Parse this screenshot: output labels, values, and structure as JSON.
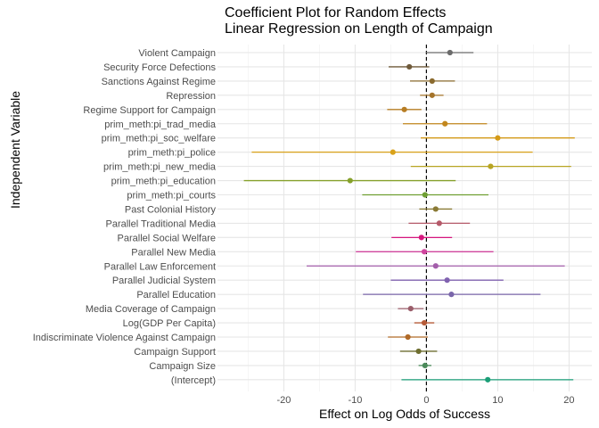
{
  "chart_data": {
    "type": "scatter",
    "title_line1": "Coefficient Plot for Random Effects",
    "title_line2": " Linear Regression on Length of Campaign",
    "xlabel": "Effect on Log Odds of Success",
    "ylabel": "Independent Variable",
    "xlim": [
      -29.3,
      23.2
    ],
    "x_ticks": [
      -20,
      -10,
      0,
      10,
      20
    ],
    "x_tick_labels": [
      "-20",
      "-10",
      "0",
      "10",
      "20"
    ],
    "reference_line": 0,
    "grid": true,
    "legend": "none",
    "variables": [
      {
        "label": "Violent Campaign",
        "estimate": 3.3,
        "low": -0.1,
        "high": 6.6,
        "color": "#6b6b6b"
      },
      {
        "label": "Security Force Defections",
        "estimate": -2.4,
        "low": -5.3,
        "high": 0.4,
        "color": "#6f5a3a"
      },
      {
        "label": "Sanctions Against Regime",
        "estimate": 0.8,
        "low": -2.3,
        "high": 4.0,
        "color": "#8a6a2e"
      },
      {
        "label": "Repression",
        "estimate": 0.8,
        "low": -0.9,
        "high": 2.4,
        "color": "#a5742a"
      },
      {
        "label": "Regime Support for Campaign",
        "estimate": -3.1,
        "low": -5.5,
        "high": -0.7,
        "color": "#b77d24"
      },
      {
        "label": "prim_meth:pi_trad_media",
        "estimate": 2.6,
        "low": -3.3,
        "high": 8.5,
        "color": "#c2871d"
      },
      {
        "label": "prim_meth:pi_soc_welfare",
        "estimate": 10.0,
        "low": -0.8,
        "high": 20.8,
        "color": "#d49a18"
      },
      {
        "label": "prim_meth:pi_police",
        "estimate": -4.7,
        "low": -24.5,
        "high": 14.9,
        "color": "#d9a21a"
      },
      {
        "label": "prim_meth:pi_new_media",
        "estimate": 9.0,
        "low": -2.2,
        "high": 20.3,
        "color": "#b8a524"
      },
      {
        "label": "prim_meth:pi_education",
        "estimate": -10.7,
        "low": -25.6,
        "high": 4.1,
        "color": "#86a12b"
      },
      {
        "label": "prim_meth:pi_courts",
        "estimate": -0.2,
        "low": -9.0,
        "high": 8.7,
        "color": "#6f9f33"
      },
      {
        "label": "Past Colonial History",
        "estimate": 1.3,
        "low": -1.0,
        "high": 3.6,
        "color": "#8a7a35"
      },
      {
        "label": "Parallel Traditional Media",
        "estimate": 1.8,
        "low": -2.5,
        "high": 6.1,
        "color": "#b55a6a"
      },
      {
        "label": "Parallel Social Welfare",
        "estimate": -0.7,
        "low": -4.9,
        "high": 3.6,
        "color": "#d6177e"
      },
      {
        "label": "Parallel New Media",
        "estimate": -0.3,
        "low": -9.9,
        "high": 9.4,
        "color": "#d0459e"
      },
      {
        "label": "Parallel Law Enforcement",
        "estimate": 1.3,
        "low": -16.8,
        "high": 19.4,
        "color": "#a35eaa"
      },
      {
        "label": "Parallel Judicial System",
        "estimate": 2.9,
        "low": -5.0,
        "high": 10.8,
        "color": "#8062b0"
      },
      {
        "label": "Parallel Education",
        "estimate": 3.5,
        "low": -8.9,
        "high": 16.0,
        "color": "#7a66aa"
      },
      {
        "label": "Media Coverage of Campaign",
        "estimate": -2.2,
        "low": -4.0,
        "high": -0.4,
        "color": "#9a5d6a"
      },
      {
        "label": "Log(GDP Per Capita)",
        "estimate": -0.3,
        "low": -1.7,
        "high": 1.1,
        "color": "#b65b38"
      },
      {
        "label": "Indiscriminate Violence Against Campaign",
        "estimate": -2.6,
        "low": -5.4,
        "high": 0.2,
        "color": "#b06a28"
      },
      {
        "label": "Campaign Support",
        "estimate": -1.1,
        "low": -3.7,
        "high": 1.5,
        "color": "#6e6e30"
      },
      {
        "label": "Campaign Size",
        "estimate": -0.2,
        "low": -1.1,
        "high": 0.7,
        "color": "#4b8a5a"
      },
      {
        "label": "(Intercept)",
        "estimate": 8.6,
        "low": -3.5,
        "high": 20.6,
        "color": "#1b9e77"
      }
    ]
  }
}
